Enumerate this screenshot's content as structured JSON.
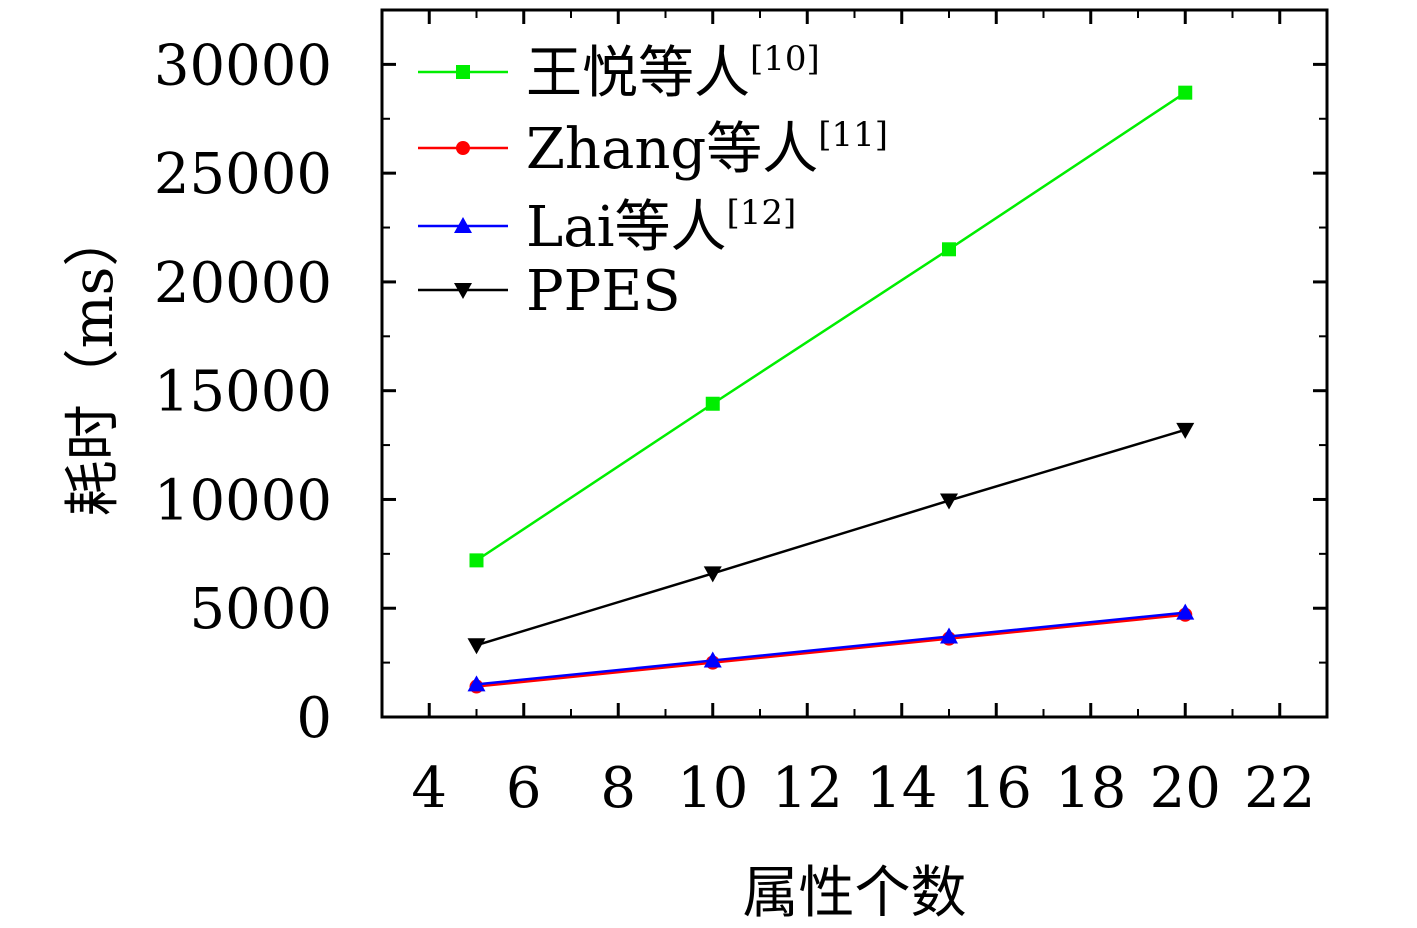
{
  "chart_data": {
    "type": "line",
    "title": "",
    "xlabel": "属性个数",
    "ylabel": "耗时（ms）",
    "xlim": [
      3,
      23
    ],
    "ylim": [
      0,
      32500
    ],
    "xticks": [
      4,
      6,
      8,
      10,
      12,
      14,
      16,
      18,
      20,
      22
    ],
    "yticks": [
      0,
      5000,
      10000,
      15000,
      20000,
      25000,
      30000
    ],
    "x": [
      5,
      10,
      15,
      20
    ],
    "grid": false,
    "legend_position": "top-left",
    "series": [
      {
        "name": "王悦等人",
        "ref": "[10]",
        "color": "#00ee00",
        "marker": "square",
        "values": [
          7200,
          14400,
          21500,
          28700
        ]
      },
      {
        "name": "Zhang等人",
        "ref": "[11]",
        "color": "#ff0000",
        "marker": "circle",
        "values": [
          1400,
          2500,
          3600,
          4700
        ]
      },
      {
        "name": "Lai等人",
        "ref": "[12]",
        "color": "#0000ff",
        "marker": "triangle-up",
        "values": [
          1500,
          2600,
          3700,
          4800
        ]
      },
      {
        "name": "PPES",
        "ref": "",
        "color": "#000000",
        "marker": "triangle-down",
        "values": [
          3300,
          6600,
          9950,
          13200
        ]
      }
    ]
  }
}
